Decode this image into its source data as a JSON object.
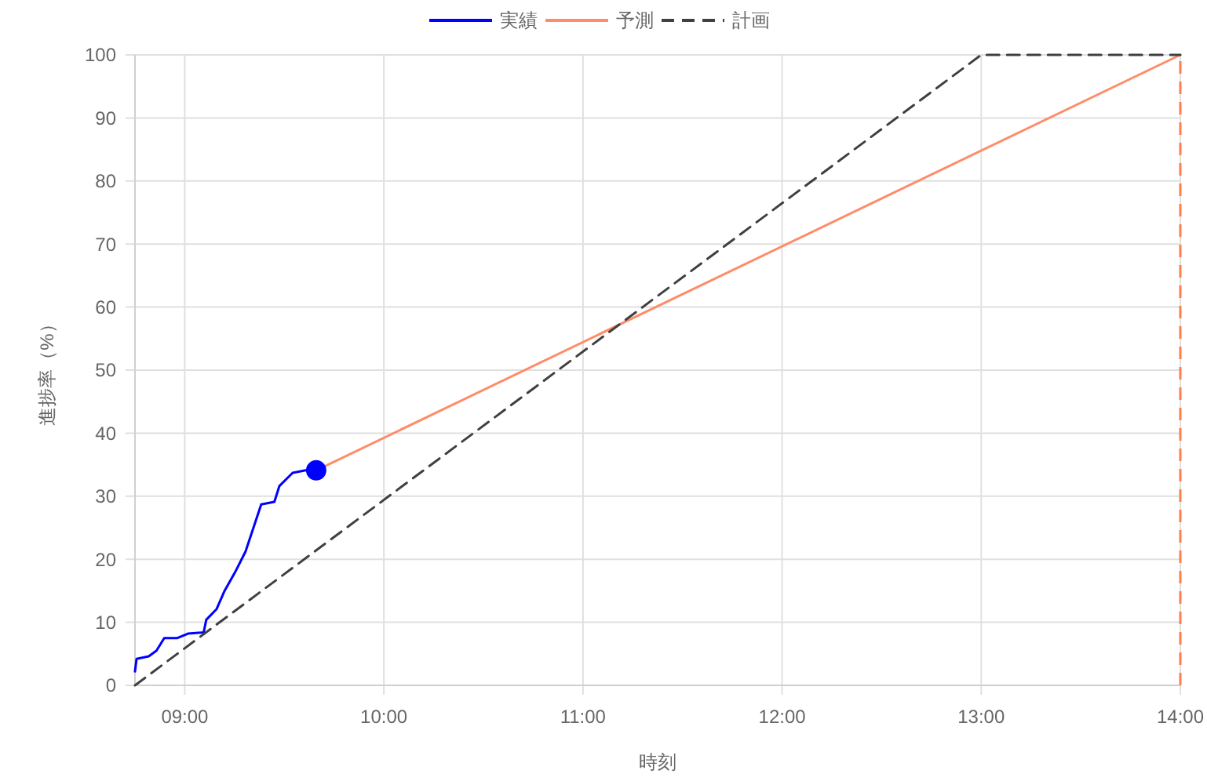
{
  "chart_data": {
    "type": "line",
    "xlabel": "時刻",
    "ylabel": "進捗率（%）",
    "xlim": [
      8.75,
      14
    ],
    "ylim": [
      0,
      100
    ],
    "xticks": [
      {
        "value": 9,
        "label": "09:00"
      },
      {
        "value": 10,
        "label": "10:00"
      },
      {
        "value": 11,
        "label": "11:00"
      },
      {
        "value": 12,
        "label": "12:00"
      },
      {
        "value": 13,
        "label": "13:00"
      },
      {
        "value": 14,
        "label": "14:00"
      }
    ],
    "yticks": [
      0,
      10,
      20,
      30,
      40,
      50,
      60,
      70,
      80,
      90,
      100
    ],
    "grid": true,
    "legend": "top",
    "series": [
      {
        "name": "実績",
        "color": "#0000ff",
        "line_style": "solid",
        "x": [
          8.75,
          8.758,
          8.819,
          8.858,
          8.897,
          8.963,
          9.016,
          9.095,
          9.108,
          9.16,
          9.2,
          9.252,
          9.305,
          9.384,
          9.45,
          9.475,
          9.542,
          9.607,
          9.66
        ],
        "values": [
          2.2,
          4.2,
          4.6,
          5.5,
          7.5,
          7.5,
          8.2,
          8.4,
          10.4,
          12.1,
          15,
          17.9,
          21.2,
          28.7,
          29.1,
          31.6,
          33.7,
          34.1,
          34.1
        ]
      },
      {
        "name": "予測",
        "color": "#ff8c69",
        "line_style": "solid",
        "x": [
          9.66,
          14
        ],
        "values": [
          34.1,
          100
        ]
      },
      {
        "name": "計画",
        "color": "#404040",
        "line_style": "dashed",
        "x": [
          8.75,
          13,
          14
        ],
        "values": [
          0,
          100,
          100
        ]
      },
      {
        "type": "scatter",
        "color": "#0000ff",
        "marker": "circle",
        "x": [
          9.66
        ],
        "values": [
          34.1
        ]
      }
    ],
    "ref_lines": [
      {
        "axis": "x",
        "value": 14,
        "label": null,
        "color": "#ff7f50",
        "line_style": "dashed"
      }
    ]
  }
}
